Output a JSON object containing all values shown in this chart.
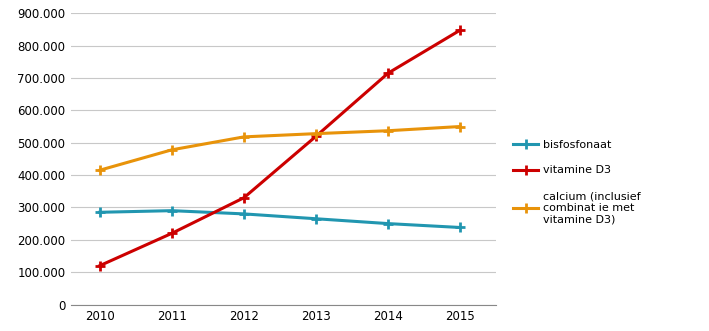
{
  "years": [
    2010,
    2011,
    2012,
    2013,
    2014,
    2015
  ],
  "bisfosfonaat": [
    285000,
    290000,
    280000,
    265000,
    250000,
    238000
  ],
  "vitamine_d3": [
    120000,
    220000,
    330000,
    520000,
    715000,
    848000
  ],
  "calcium": [
    415000,
    478000,
    518000,
    528000,
    537000,
    550000
  ],
  "color_bisfosfonaat": "#2196b0",
  "color_vitamine_d3": "#cc0000",
  "color_calcium": "#e8930a",
  "label_bisfosfonaat": "bisfosfonaat",
  "label_vitamine_d3": "vitamine D3",
  "label_calcium": "calcium (inclusief\ncombinat ie met\nvitamine D3)",
  "ylim": [
    0,
    900000
  ],
  "yticks": [
    0,
    100000,
    200000,
    300000,
    400000,
    500000,
    600000,
    700000,
    800000,
    900000
  ],
  "background_color": "#ffffff",
  "plot_bg_color": "#ffffff",
  "grid_color": "#c8c8c8",
  "linewidth": 2.2,
  "markersize": 7,
  "markeredgewidth": 2.0
}
